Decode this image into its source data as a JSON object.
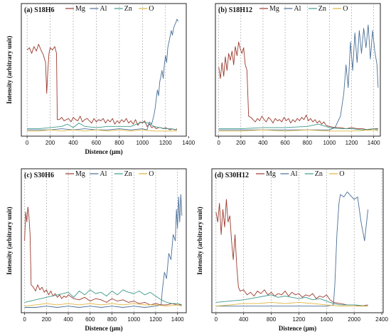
{
  "figure": {
    "ylabel": "Intensity (arbitrary unit)",
    "xlabel": "Distence (μm)"
  },
  "colors": {
    "Mg": "#9b3a2f",
    "Al": "#4a6f96",
    "Zn": "#3f9a8a",
    "O": "#e0b43a",
    "grid": "#9a9a9a"
  },
  "chart_data": [
    {
      "type": "line",
      "panel": "(a)",
      "title": "S18H6",
      "xlabel": "Distence (μm)",
      "ylabel": "Intensity (arbitrary unit)",
      "xticks": [
        0,
        200,
        400,
        600,
        800,
        1000,
        1200,
        1400
      ],
      "xlim": [
        -50,
        1380
      ],
      "ylim": [
        0,
        100
      ],
      "grid": "vertical-dashed",
      "legend": [
        "Mg",
        "Al",
        "Zn",
        "O"
      ],
      "series": [
        {
          "name": "Mg",
          "x": [
            0,
            20,
            40,
            60,
            80,
            100,
            120,
            140,
            160,
            170,
            180,
            190,
            200,
            220,
            240,
            255,
            262,
            280,
            300,
            320,
            340,
            360,
            380,
            400,
            420,
            440,
            460,
            480,
            500,
            520,
            540,
            560,
            580,
            600,
            620,
            640,
            660,
            680,
            700,
            720,
            740,
            760,
            780,
            800,
            820,
            840,
            860,
            880,
            900,
            920,
            940,
            960,
            980,
            1000,
            1020,
            1040,
            1060,
            1080,
            1100,
            1120,
            1140,
            1160,
            1180,
            1200,
            1220,
            1240,
            1260,
            1280,
            1300
          ],
          "y": [
            73,
            75,
            70,
            76,
            72,
            78,
            73,
            69,
            62,
            35,
            55,
            70,
            75,
            73,
            76,
            70,
            12,
            12,
            14,
            11,
            12,
            13,
            10,
            14,
            12,
            11,
            15,
            10,
            12,
            13,
            11,
            9,
            13,
            10,
            12,
            11,
            13,
            9,
            12,
            10,
            13,
            8,
            11,
            9,
            12,
            10,
            13,
            9,
            11,
            8,
            12,
            7,
            10,
            9,
            11,
            6,
            8,
            5,
            6,
            4,
            5,
            5,
            4,
            5,
            4,
            3,
            4,
            3,
            4
          ]
        },
        {
          "name": "Al",
          "x": [
            0,
            100,
            200,
            300,
            400,
            500,
            600,
            700,
            800,
            900,
            1000,
            1040,
            1060,
            1080,
            1100,
            1110,
            1120,
            1130,
            1140,
            1150,
            1160,
            1170,
            1180,
            1190,
            1200,
            1210,
            1220,
            1230,
            1240,
            1250,
            1260,
            1270,
            1280,
            1290,
            1300,
            1310
          ],
          "y": [
            3,
            3,
            3,
            4,
            3,
            4,
            3,
            3,
            4,
            3,
            4,
            3,
            10,
            8,
            16,
            22,
            30,
            38,
            33,
            45,
            50,
            55,
            48,
            60,
            68,
            62,
            75,
            80,
            85,
            90,
            86,
            92,
            95,
            97,
            100,
            98
          ]
        },
        {
          "name": "Zn",
          "x": [
            0,
            100,
            200,
            300,
            350,
            400,
            450,
            500,
            600,
            700,
            800,
            900,
            950,
            1000,
            1050,
            1100,
            1150,
            1200,
            1250,
            1300
          ],
          "y": [
            4,
            4,
            5,
            6,
            8,
            5,
            9,
            6,
            5,
            6,
            6,
            6,
            8,
            10,
            9,
            6,
            5,
            4,
            4,
            3
          ]
        },
        {
          "name": "O",
          "x": [
            0,
            100,
            200,
            300,
            400,
            500,
            600,
            700,
            800,
            900,
            1000,
            1100,
            1200,
            1300
          ],
          "y": [
            2,
            2,
            3,
            2,
            3,
            2,
            3,
            2,
            3,
            2,
            3,
            2,
            2,
            2
          ]
        }
      ]
    },
    {
      "type": "line",
      "panel": "(b)",
      "title": "S18H12",
      "xlabel": "",
      "ylabel": "",
      "xticks": [
        0,
        200,
        400,
        600,
        800,
        1000,
        1200,
        1400
      ],
      "xlim": [
        -30,
        1460
      ],
      "ylim": [
        0,
        100
      ],
      "grid": "vertical-dashed",
      "legend": [
        "Mg",
        "Al",
        "Zn",
        "O"
      ],
      "series": [
        {
          "name": "Mg",
          "x": [
            0,
            15,
            30,
            45,
            60,
            75,
            90,
            105,
            120,
            135,
            150,
            165,
            180,
            195,
            210,
            225,
            240,
            255,
            270,
            290,
            310,
            330,
            350,
            370,
            390,
            410,
            430,
            450,
            470,
            490,
            510,
            530,
            550,
            570,
            590,
            610,
            630,
            650,
            670,
            690,
            710,
            730,
            750,
            770,
            790,
            810,
            830,
            850,
            870,
            890,
            910,
            930,
            950,
            970,
            1000,
            1050,
            1100,
            1150,
            1200,
            1250,
            1300,
            1350,
            1400,
            1440
          ],
          "y": [
            58,
            48,
            62,
            50,
            67,
            55,
            70,
            64,
            72,
            60,
            76,
            68,
            80,
            74,
            70,
            75,
            60,
            55,
            15,
            14,
            12,
            10,
            13,
            11,
            15,
            12,
            10,
            14,
            12,
            9,
            13,
            11,
            12,
            10,
            14,
            11,
            13,
            9,
            12,
            10,
            13,
            11,
            14,
            12,
            16,
            11,
            13,
            10,
            12,
            9,
            11,
            8,
            10,
            7,
            6,
            5,
            5,
            4,
            5,
            4,
            4,
            3,
            4,
            4
          ]
        },
        {
          "name": "Al",
          "x": [
            0,
            100,
            200,
            300,
            400,
            500,
            600,
            700,
            800,
            900,
            1000,
            1050,
            1100,
            1130,
            1150,
            1170,
            1190,
            1210,
            1230,
            1250,
            1270,
            1290,
            1310,
            1330,
            1350,
            1370,
            1390,
            1410,
            1430,
            1440
          ],
          "y": [
            3,
            3,
            3,
            3,
            3,
            3,
            3,
            3,
            3,
            3,
            3,
            5,
            15,
            35,
            60,
            40,
            80,
            55,
            88,
            62,
            90,
            70,
            92,
            75,
            95,
            65,
            90,
            72,
            60,
            40
          ]
        },
        {
          "name": "Zn",
          "x": [
            0,
            200,
            400,
            600,
            800,
            900,
            1000,
            1100,
            1200,
            1300,
            1400,
            1440
          ],
          "y": [
            4,
            4,
            5,
            5,
            6,
            8,
            5,
            4,
            4,
            3,
            4,
            3
          ]
        },
        {
          "name": "O",
          "x": [
            0,
            200,
            400,
            600,
            800,
            1000,
            1200,
            1400,
            1440
          ],
          "y": [
            2,
            2,
            3,
            2,
            3,
            2,
            2,
            3,
            2
          ]
        }
      ]
    },
    {
      "type": "line",
      "panel": "(c)",
      "title": "S30H6",
      "xlabel": "Distence (μm)",
      "ylabel": "Intensity (arbitrary unit)",
      "xticks": [
        0,
        200,
        400,
        600,
        800,
        1000,
        1200,
        1400
      ],
      "xlim": [
        -30,
        1480
      ],
      "ylim": [
        0,
        100
      ],
      "grid": "vertical-dashed",
      "legend": [
        "Mg",
        "Al",
        "Zn",
        "O"
      ],
      "series": [
        {
          "name": "Mg",
          "x": [
            0,
            10,
            20,
            30,
            40,
            50,
            60,
            80,
            100,
            120,
            140,
            160,
            180,
            200,
            220,
            240,
            260,
            280,
            300,
            320,
            340,
            360,
            380,
            400,
            450,
            500,
            550,
            600,
            650,
            700,
            750,
            800,
            850,
            900,
            950,
            1000,
            1050,
            1100,
            1150,
            1200,
            1250,
            1300,
            1350,
            1400,
            1440
          ],
          "y": [
            55,
            78,
            70,
            82,
            74,
            60,
            20,
            18,
            15,
            20,
            16,
            18,
            14,
            16,
            12,
            15,
            11,
            13,
            10,
            12,
            9,
            11,
            10,
            12,
            9,
            8,
            10,
            7,
            9,
            8,
            6,
            9,
            7,
            8,
            6,
            7,
            5,
            6,
            4,
            5,
            4,
            4,
            5,
            4,
            4
          ]
        },
        {
          "name": "Al",
          "x": [
            0,
            100,
            200,
            300,
            400,
            500,
            600,
            700,
            800,
            900,
            1000,
            1100,
            1200,
            1250,
            1260,
            1280,
            1300,
            1320,
            1340,
            1360,
            1380,
            1390,
            1400,
            1410,
            1420,
            1430,
            1440
          ],
          "y": [
            2,
            2,
            3,
            2,
            3,
            2,
            3,
            2,
            3,
            2,
            3,
            2,
            3,
            4,
            15,
            30,
            25,
            45,
            40,
            60,
            55,
            80,
            65,
            90,
            70,
            92,
            75
          ]
        },
        {
          "name": "Zn",
          "x": [
            0,
            100,
            200,
            300,
            400,
            450,
            500,
            550,
            600,
            650,
            700,
            750,
            800,
            850,
            900,
            950,
            1000,
            1050,
            1100,
            1150,
            1200,
            1250,
            1300,
            1350,
            1400,
            1440
          ],
          "y": [
            6,
            8,
            10,
            12,
            14,
            10,
            15,
            12,
            16,
            13,
            14,
            11,
            15,
            12,
            16,
            14,
            13,
            15,
            12,
            14,
            11,
            8,
            6,
            5,
            5,
            4
          ]
        },
        {
          "name": "O",
          "x": [
            0,
            100,
            200,
            300,
            400,
            500,
            600,
            700,
            800,
            900,
            1000,
            1100,
            1200,
            1300,
            1400,
            1440
          ],
          "y": [
            3,
            4,
            5,
            4,
            5,
            4,
            5,
            4,
            5,
            4,
            5,
            4,
            4,
            3,
            4,
            3
          ]
        }
      ]
    },
    {
      "type": "line",
      "panel": "(d)",
      "title": "S30H12",
      "xlabel": "Distence (μm)",
      "ylabel": "Intensity (arbitrary unit)",
      "xticks": [
        0,
        400,
        800,
        1200,
        1600,
        2000,
        2400
      ],
      "xlim": [
        -60,
        2420
      ],
      "ylim": [
        0,
        100
      ],
      "grid": "vertical-dashed",
      "legend": [
        "Mg",
        "Al",
        "Zn",
        "O"
      ],
      "series": [
        {
          "name": "Mg",
          "x": [
            0,
            25,
            50,
            75,
            100,
            125,
            150,
            175,
            200,
            225,
            250,
            275,
            300,
            325,
            350,
            400,
            450,
            500,
            550,
            600,
            650,
            700,
            750,
            800,
            850,
            900,
            950,
            1000,
            1050,
            1100,
            1150,
            1200,
            1250,
            1300,
            1350,
            1400,
            1450,
            1500,
            1550,
            1600,
            1650,
            1700,
            1800,
            1900,
            2000,
            2100,
            2200
          ],
          "y": [
            78,
            70,
            85,
            60,
            80,
            66,
            88,
            70,
            75,
            55,
            40,
            60,
            35,
            18,
            15,
            16,
            12,
            14,
            11,
            15,
            13,
            16,
            12,
            14,
            11,
            13,
            12,
            15,
            11,
            14,
            12,
            13,
            10,
            12,
            11,
            13,
            9,
            11,
            10,
            12,
            8,
            6,
            5,
            4,
            4,
            3,
            4
          ]
        },
        {
          "name": "Al",
          "x": [
            0,
            200,
            400,
            600,
            800,
            1000,
            1200,
            1400,
            1600,
            1700,
            1720,
            1750,
            1780,
            1800,
            1850,
            1900,
            1950,
            2000,
            2050,
            2100,
            2150,
            2200
          ],
          "y": [
            3,
            3,
            3,
            3,
            3,
            3,
            3,
            3,
            3,
            4,
            20,
            60,
            85,
            92,
            90,
            94,
            91,
            88,
            90,
            70,
            55,
            80
          ]
        },
        {
          "name": "Zn",
          "x": [
            0,
            200,
            400,
            500,
            600,
            700,
            800,
            900,
            1000,
            1100,
            1200,
            1300,
            1400,
            1500,
            1600,
            1650,
            1700,
            1800,
            2000,
            2200
          ],
          "y": [
            6,
            7,
            8,
            9,
            10,
            11,
            12,
            10,
            11,
            10,
            9,
            10,
            8,
            9,
            7,
            6,
            5,
            4,
            4,
            3
          ]
        },
        {
          "name": "O",
          "x": [
            0,
            200,
            400,
            600,
            800,
            1000,
            1200,
            1400,
            1600,
            1800,
            2000,
            2200
          ],
          "y": [
            3,
            4,
            5,
            5,
            6,
            5,
            6,
            5,
            4,
            3,
            3,
            3
          ]
        }
      ]
    }
  ]
}
